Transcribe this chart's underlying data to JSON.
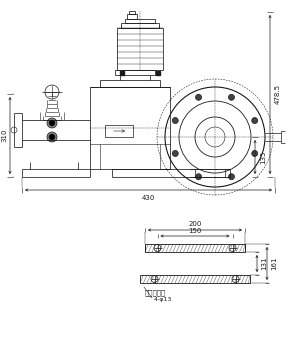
{
  "bg_color": "#ffffff",
  "lc": "#1a1a1a",
  "dim_478": "478.5",
  "dim_310": "310",
  "dim_135": "135",
  "dim_430": "430",
  "dim_200": "200",
  "dim_150": "150",
  "dim_131": "131",
  "dim_161": "161",
  "base_label": "机底尺十图",
  "hole_label": "4-φ13"
}
